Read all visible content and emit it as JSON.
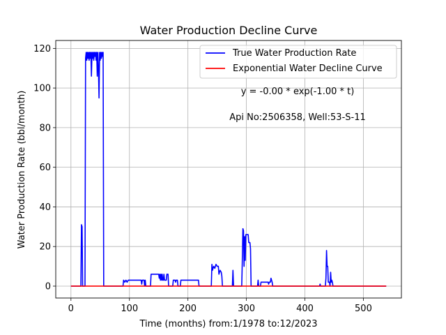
{
  "chart_data": {
    "type": "line",
    "title": "Water Production Decline Curve",
    "xlabel": "Time (months) from:1/1978 to:12/2023",
    "ylabel": "Water Production Rate (bbl/month)",
    "xlim": [
      -26,
      565
    ],
    "ylim": [
      -6,
      124
    ],
    "xticks": [
      0,
      100,
      200,
      300,
      400,
      500
    ],
    "yticks": [
      0,
      20,
      40,
      60,
      80,
      100,
      120
    ],
    "grid": true,
    "legend_position": "top-right",
    "annotations": {
      "equation": "y = -0.00 * exp(-1.00 * t)",
      "well": "Api No:2506358, Well:53-S-11"
    },
    "series": [
      {
        "name": "True Water Production Rate",
        "color": "#0000ff",
        "points": [
          [
            0,
            0
          ],
          [
            17,
            0
          ],
          [
            18,
            31
          ],
          [
            19,
            30
          ],
          [
            20,
            0
          ],
          [
            24,
            0
          ],
          [
            25,
            115
          ],
          [
            26,
            118
          ],
          [
            27,
            114
          ],
          [
            28,
            118
          ],
          [
            29,
            115
          ],
          [
            30,
            118
          ],
          [
            31,
            114
          ],
          [
            32,
            118
          ],
          [
            33,
            115
          ],
          [
            34,
            118
          ],
          [
            35,
            106
          ],
          [
            36,
            118
          ],
          [
            37,
            115
          ],
          [
            38,
            118
          ],
          [
            39,
            114
          ],
          [
            40,
            118
          ],
          [
            41,
            116
          ],
          [
            42,
            118
          ],
          [
            43,
            114
          ],
          [
            44,
            118
          ],
          [
            45,
            106
          ],
          [
            46,
            118
          ],
          [
            47,
            110
          ],
          [
            48,
            95
          ],
          [
            49,
            118
          ],
          [
            50,
            114
          ],
          [
            51,
            118
          ],
          [
            52,
            115
          ],
          [
            53,
            118
          ],
          [
            54,
            116
          ],
          [
            55,
            118
          ],
          [
            56,
            0
          ],
          [
            89,
            0
          ],
          [
            90,
            3
          ],
          [
            92,
            2
          ],
          [
            94,
            3
          ],
          [
            96,
            2
          ],
          [
            98,
            3
          ],
          [
            120,
            3
          ],
          [
            121,
            1
          ],
          [
            122,
            3
          ],
          [
            125,
            3
          ],
          [
            126,
            0
          ],
          [
            127,
            3
          ],
          [
            128,
            0
          ],
          [
            136,
            0
          ],
          [
            137,
            6
          ],
          [
            150,
            6
          ],
          [
            151,
            4
          ],
          [
            152,
            6
          ],
          [
            153,
            3
          ],
          [
            154,
            6
          ],
          [
            155,
            3
          ],
          [
            156,
            6
          ],
          [
            157,
            3
          ],
          [
            158,
            3
          ],
          [
            159,
            6
          ],
          [
            160,
            3
          ],
          [
            163,
            3
          ],
          [
            164,
            6
          ],
          [
            166,
            6
          ],
          [
            167,
            0
          ],
          [
            174,
            0
          ],
          [
            175,
            3
          ],
          [
            178,
            3
          ],
          [
            179,
            2
          ],
          [
            180,
            3
          ],
          [
            182,
            3
          ],
          [
            183,
            0
          ],
          [
            187,
            0
          ],
          [
            188,
            3
          ],
          [
            218,
            3
          ],
          [
            219,
            0
          ],
          [
            240,
            0
          ],
          [
            241,
            11
          ],
          [
            242,
            8
          ],
          [
            244,
            10
          ],
          [
            246,
            9
          ],
          [
            248,
            11
          ],
          [
            250,
            10
          ],
          [
            252,
            10
          ],
          [
            253,
            6
          ],
          [
            255,
            8
          ],
          [
            257,
            7
          ],
          [
            258,
            5
          ],
          [
            259,
            0
          ],
          [
            276,
            0
          ],
          [
            277,
            8
          ],
          [
            278,
            0
          ],
          [
            292,
            0
          ],
          [
            293,
            13
          ],
          [
            294,
            29
          ],
          [
            295,
            28
          ],
          [
            296,
            10
          ],
          [
            297,
            25
          ],
          [
            298,
            13
          ],
          [
            299,
            26
          ],
          [
            303,
            26
          ],
          [
            304,
            22
          ],
          [
            306,
            22
          ],
          [
            307,
            19
          ],
          [
            308,
            0
          ],
          [
            319,
            0
          ],
          [
            320,
            3
          ],
          [
            321,
            0
          ],
          [
            324,
            0
          ],
          [
            325,
            2
          ],
          [
            337,
            2
          ],
          [
            338,
            1
          ],
          [
            339,
            2
          ],
          [
            341,
            2
          ],
          [
            342,
            4
          ],
          [
            343,
            3
          ],
          [
            344,
            2
          ],
          [
            345,
            0
          ],
          [
            425,
            0
          ],
          [
            426,
            1
          ],
          [
            427,
            0
          ],
          [
            435,
            0
          ],
          [
            436,
            4
          ],
          [
            437,
            18
          ],
          [
            438,
            10
          ],
          [
            439,
            10
          ],
          [
            440,
            2
          ],
          [
            442,
            2
          ],
          [
            443,
            0
          ],
          [
            444,
            7
          ],
          [
            445,
            2
          ],
          [
            446,
            3
          ],
          [
            447,
            2
          ],
          [
            448,
            0
          ],
          [
            539,
            0
          ]
        ]
      },
      {
        "name": "Exponential Water Decline Curve",
        "color": "#ff0000",
        "points": [
          [
            0,
            0
          ],
          [
            539,
            0
          ]
        ]
      }
    ]
  }
}
